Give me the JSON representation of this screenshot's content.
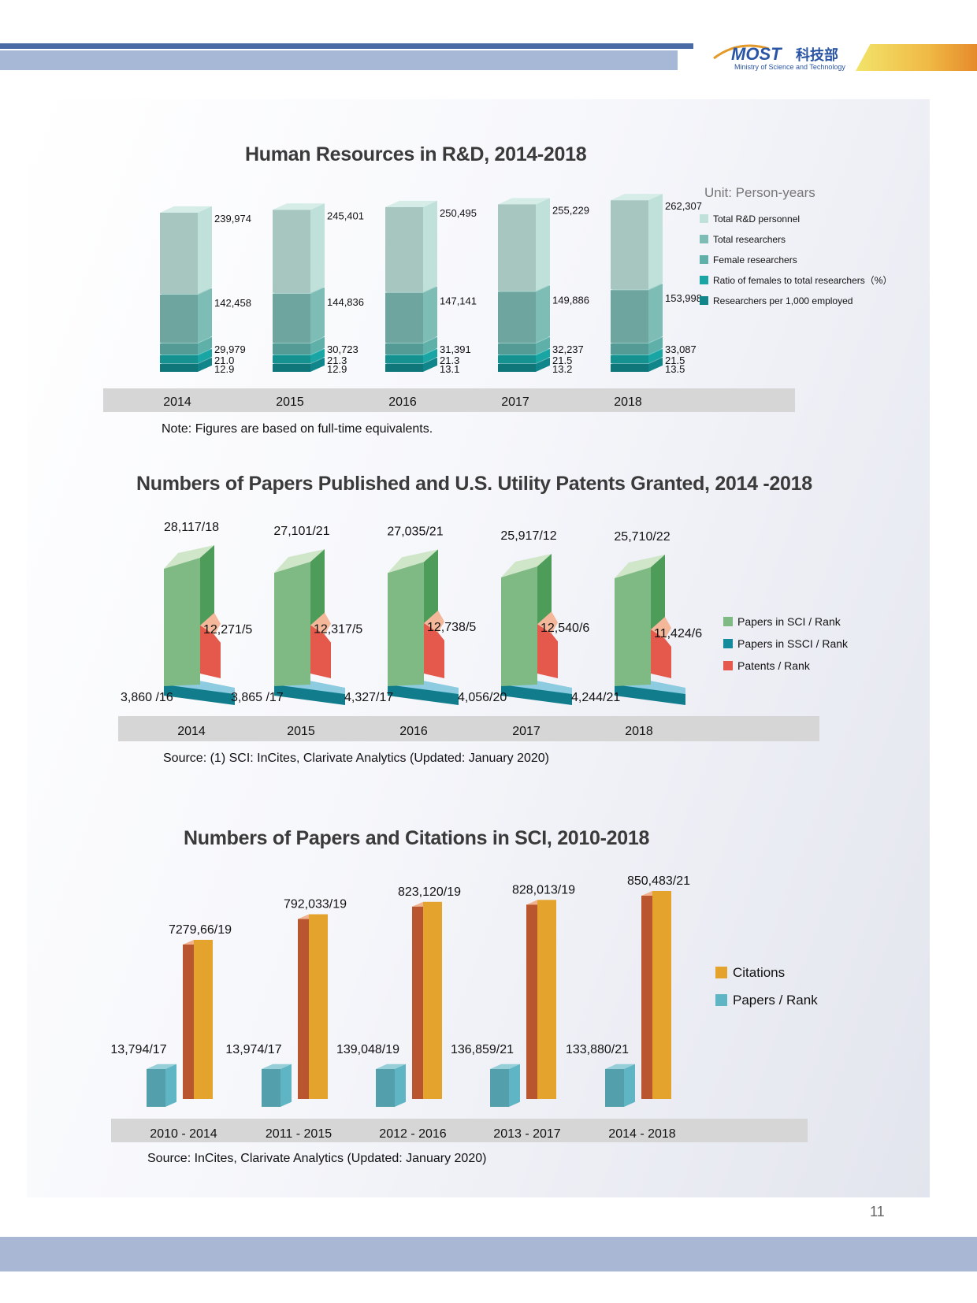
{
  "header": {
    "logo_text": "MOST",
    "logo_chinese": "科技部",
    "logo_subtitle": "Ministry of Science and Technology"
  },
  "colors": {
    "panel_bg": "#eef0f6",
    "axis_band": "#d6d6d6",
    "hr_total": "#bfe1da",
    "hr_researchers": "#7dbdb5",
    "hr_female": "#5fb0a9",
    "hr_ratio": "#18a5a3",
    "hr_per1000": "#11868a",
    "sci_green": "#7fba84",
    "ssci_teal": "#138b9c",
    "patents_red": "#e4594c",
    "citations_orange": "#e3a32c",
    "papers_blue": "#5fb5c3"
  },
  "page_number": "11",
  "chart_data": [
    {
      "type": "bar",
      "title": "Human Resources in R&D, 2014-2018",
      "unit_label": "Unit: Person-years",
      "categories": [
        "2014",
        "2015",
        "2016",
        "2017",
        "2018"
      ],
      "series": [
        {
          "name": "Total R&D personnel",
          "values": [
            239974,
            245401,
            250495,
            255229,
            262307
          ],
          "labels": [
            "239,974",
            "245,401",
            "250,495",
            "255,229",
            "262,307"
          ]
        },
        {
          "name": "Total researchers",
          "values": [
            142458,
            144836,
            147141,
            149886,
            153998
          ],
          "labels": [
            "142,458",
            "144,836",
            "147,141",
            "149,886",
            "153,998"
          ]
        },
        {
          "name": "Female researchers",
          "values": [
            29979,
            30723,
            31391,
            32237,
            33087
          ],
          "labels": [
            "29,979",
            "30,723",
            "31,391",
            "32,237",
            "33,087"
          ]
        },
        {
          "name": "Ratio of females to total researchers（%）",
          "values": [
            21.0,
            21.3,
            21.3,
            21.5,
            21.5
          ],
          "labels": [
            "21.0",
            "21.3",
            "21.3",
            "21.5",
            "21.5"
          ]
        },
        {
          "name": "Researchers per 1,000 employed",
          "values": [
            12.9,
            12.9,
            13.1,
            13.2,
            13.5
          ],
          "labels": [
            "12.9",
            "12.9",
            "13.1",
            "13.2",
            "13.5"
          ]
        }
      ],
      "note": "Note: Figures are based on full-time equivalents."
    },
    {
      "type": "bar",
      "title": "Numbers of Papers Published and U.S. Utility Patents Granted, 2014 -2018",
      "categories": [
        "2014",
        "2015",
        "2016",
        "2017",
        "2018"
      ],
      "series": [
        {
          "name": "Papers in SCI / Rank",
          "values": [
            28117,
            27101,
            27035,
            25917,
            25710
          ],
          "ranks": [
            18,
            21,
            21,
            12,
            22
          ],
          "labels": [
            "28,117/18",
            "27,101/21",
            "27,035/21",
            "25,917/12",
            "25,710/22"
          ]
        },
        {
          "name": "Papers in SSCI / Rank",
          "values": [
            3860,
            3865,
            4327,
            4056,
            4244
          ],
          "ranks": [
            16,
            17,
            17,
            20,
            21
          ],
          "labels": [
            "3,860 /16",
            "3,865 /17",
            "4,327/17",
            "4,056/20",
            "4,244/21"
          ]
        },
        {
          "name": "Patents / Rank",
          "values": [
            12271,
            12317,
            12738,
            12540,
            11424
          ],
          "ranks": [
            5,
            5,
            5,
            6,
            6
          ],
          "labels": [
            "12,271/5",
            "12,317/5",
            "12,738/5",
            "12,540/6",
            "11,424/6"
          ]
        }
      ],
      "note": "Source: (1) SCI: InCites, Clarivate Analytics (Updated: January 2020)"
    },
    {
      "type": "bar",
      "title": "Numbers of Papers and Citations in SCI, 2010-2018",
      "categories": [
        "2010 - 2014",
        "2011 - 2015",
        "2012 - 2016",
        "2013 - 2017",
        "2014 - 2018"
      ],
      "series": [
        {
          "name": "Papers / Rank",
          "values": [
            13794,
            13974,
            139048,
            136859,
            133880
          ],
          "ranks": [
            17,
            17,
            19,
            21,
            21
          ],
          "labels": [
            "13,794/17",
            "13,974/17",
            "139,048/19",
            "136,859/21",
            "133,880/21"
          ]
        },
        {
          "name": "Citations",
          "values": [
            727966,
            792033,
            823120,
            828013,
            850483
          ],
          "ranks": [
            19,
            19,
            19,
            19,
            21
          ],
          "labels": [
            "7279,66/19",
            "792,033/19",
            "823,120/19",
            "828,013/19",
            "850,483/21"
          ]
        }
      ],
      "legend_order": [
        "Citations",
        "Papers / Rank"
      ],
      "note": "Source: InCites, Clarivate Analytics (Updated: January 2020)"
    }
  ]
}
